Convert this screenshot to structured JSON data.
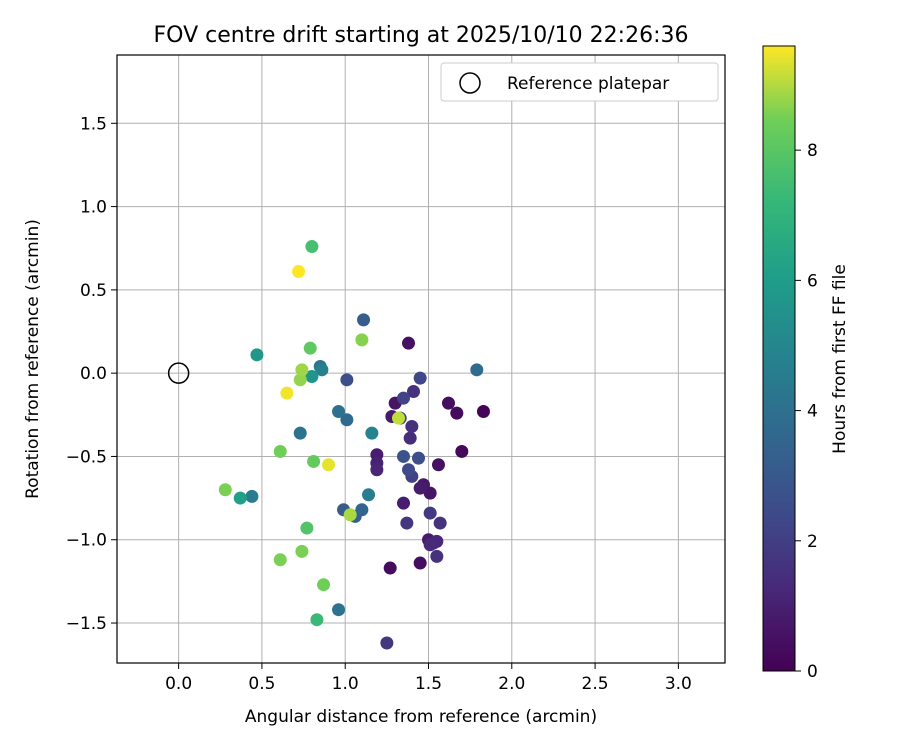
{
  "chart_data": {
    "type": "scatter",
    "title": "FOV centre drift starting at 2025/10/10 22:26:36",
    "xlabel": "Angular distance from reference (arcmin)",
    "ylabel": "Rotation from reference (arcmin)",
    "xlim": [
      -0.37,
      3.28
    ],
    "ylim": [
      -1.74,
      1.91
    ],
    "xticks": [
      0.0,
      0.5,
      1.0,
      1.5,
      2.0,
      2.5,
      3.0
    ],
    "xtick_labels": [
      "0.0",
      "0.5",
      "1.0",
      "1.5",
      "2.0",
      "2.5",
      "3.0"
    ],
    "yticks": [
      1.5,
      1.0,
      0.5,
      0.0,
      -0.5,
      -1.0,
      -1.5
    ],
    "ytick_labels": [
      "1.5",
      "1.0",
      "0.5",
      "0.0",
      "−0.5",
      "−1.0",
      "−1.5"
    ],
    "grid": true,
    "legend": {
      "position": "top-right",
      "label": "Reference platepar"
    },
    "reference": {
      "x": 0.0,
      "y": 0.0
    },
    "colorbar": {
      "label": "Hours from first FF file",
      "min": 0,
      "max": 9.6,
      "ticks": [
        0,
        2,
        4,
        6,
        8
      ],
      "tick_labels": [
        "0",
        "2",
        "4",
        "6",
        "8"
      ],
      "colormap": "viridis"
    },
    "points": [
      {
        "x": 1.83,
        "y": -0.23,
        "h": 0.1
      },
      {
        "x": 1.7,
        "y": -0.47,
        "h": 0.2
      },
      {
        "x": 1.67,
        "y": -0.24,
        "h": 0.3
      },
      {
        "x": 1.62,
        "y": -0.18,
        "h": 0.4
      },
      {
        "x": 1.56,
        "y": -0.55,
        "h": 0.5
      },
      {
        "x": 1.51,
        "y": -0.72,
        "h": 0.6
      },
      {
        "x": 1.47,
        "y": -0.67,
        "h": 0.7
      },
      {
        "x": 1.45,
        "y": -0.69,
        "h": 0.8
      },
      {
        "x": 1.38,
        "y": 0.18,
        "h": 0.5
      },
      {
        "x": 1.3,
        "y": -0.18,
        "h": 0.6
      },
      {
        "x": 1.28,
        "y": -0.26,
        "h": 0.8
      },
      {
        "x": 1.19,
        "y": -0.49,
        "h": 0.9
      },
      {
        "x": 1.19,
        "y": -0.54,
        "h": 1.0
      },
      {
        "x": 1.19,
        "y": -0.58,
        "h": 1.1
      },
      {
        "x": 1.35,
        "y": -0.78,
        "h": 0.9
      },
      {
        "x": 1.27,
        "y": -1.17,
        "h": 0.3
      },
      {
        "x": 1.45,
        "y": -1.14,
        "h": 0.4
      },
      {
        "x": 1.5,
        "y": -1.0,
        "h": 0.8
      },
      {
        "x": 1.53,
        "y": -1.02,
        "h": 1.0
      },
      {
        "x": 1.55,
        "y": -1.01,
        "h": 1.2
      },
      {
        "x": 1.51,
        "y": -1.03,
        "h": 1.3
      },
      {
        "x": 1.55,
        "y": -1.1,
        "h": 1.5
      },
      {
        "x": 1.57,
        "y": -0.9,
        "h": 1.6
      },
      {
        "x": 1.51,
        "y": -0.84,
        "h": 1.8
      },
      {
        "x": 1.37,
        "y": -0.9,
        "h": 1.7
      },
      {
        "x": 1.39,
        "y": -0.39,
        "h": 1.4
      },
      {
        "x": 1.4,
        "y": -0.32,
        "h": 1.5
      },
      {
        "x": 1.41,
        "y": -0.11,
        "h": 1.6
      },
      {
        "x": 1.35,
        "y": -0.15,
        "h": 2.2
      },
      {
        "x": 1.45,
        "y": -0.03,
        "h": 2.3
      },
      {
        "x": 1.33,
        "y": -0.27,
        "h": 2.0
      },
      {
        "x": 1.4,
        "y": -0.62,
        "h": 2.1
      },
      {
        "x": 1.38,
        "y": -0.58,
        "h": 2.4
      },
      {
        "x": 1.44,
        "y": -0.51,
        "h": 2.6
      },
      {
        "x": 1.35,
        "y": -0.5,
        "h": 2.8
      },
      {
        "x": 1.25,
        "y": -1.62,
        "h": 1.7
      },
      {
        "x": 1.01,
        "y": -0.04,
        "h": 2.6
      },
      {
        "x": 1.11,
        "y": 0.32,
        "h": 3.2
      },
      {
        "x": 1.79,
        "y": 0.02,
        "h": 3.8
      },
      {
        "x": 0.99,
        "y": -0.82,
        "h": 3.1
      },
      {
        "x": 1.06,
        "y": -0.86,
        "h": 3.3
      },
      {
        "x": 1.1,
        "y": -0.82,
        "h": 3.5
      },
      {
        "x": 1.01,
        "y": -0.28,
        "h": 3.7
      },
      {
        "x": 0.96,
        "y": -0.23,
        "h": 4.0
      },
      {
        "x": 0.96,
        "y": -1.42,
        "h": 4.1
      },
      {
        "x": 0.85,
        "y": 0.04,
        "h": 4.2
      },
      {
        "x": 0.73,
        "y": -0.36,
        "h": 4.1
      },
      {
        "x": 1.14,
        "y": -0.73,
        "h": 4.6
      },
      {
        "x": 1.16,
        "y": -0.36,
        "h": 4.8
      },
      {
        "x": 0.44,
        "y": -0.74,
        "h": 4.5
      },
      {
        "x": 0.86,
        "y": 0.02,
        "h": 4.7
      },
      {
        "x": 0.8,
        "y": -0.02,
        "h": 5.6
      },
      {
        "x": 0.47,
        "y": 0.11,
        "h": 5.7
      },
      {
        "x": 0.37,
        "y": -0.75,
        "h": 6.1
      },
      {
        "x": 0.83,
        "y": -1.48,
        "h": 7.3
      },
      {
        "x": 0.8,
        "y": 0.76,
        "h": 7.6
      },
      {
        "x": 0.77,
        "y": -0.93,
        "h": 7.8
      },
      {
        "x": 0.79,
        "y": 0.15,
        "h": 8.1
      },
      {
        "x": 0.81,
        "y": -0.53,
        "h": 8.2
      },
      {
        "x": 0.87,
        "y": -1.27,
        "h": 8.4
      },
      {
        "x": 0.74,
        "y": -1.07,
        "h": 8.5
      },
      {
        "x": 0.61,
        "y": -1.12,
        "h": 8.5
      },
      {
        "x": 0.61,
        "y": -0.47,
        "h": 8.4
      },
      {
        "x": 0.28,
        "y": -0.7,
        "h": 8.5
      },
      {
        "x": 1.1,
        "y": 0.2,
        "h": 8.6
      },
      {
        "x": 0.73,
        "y": -0.04,
        "h": 8.7
      },
      {
        "x": 0.74,
        "y": 0.02,
        "h": 8.8
      },
      {
        "x": 1.03,
        "y": -0.85,
        "h": 8.9
      },
      {
        "x": 1.32,
        "y": -0.27,
        "h": 9.1
      },
      {
        "x": 0.9,
        "y": -0.55,
        "h": 9.4
      },
      {
        "x": 0.65,
        "y": -0.12,
        "h": 9.5
      },
      {
        "x": 0.72,
        "y": 0.61,
        "h": 9.6
      }
    ]
  }
}
